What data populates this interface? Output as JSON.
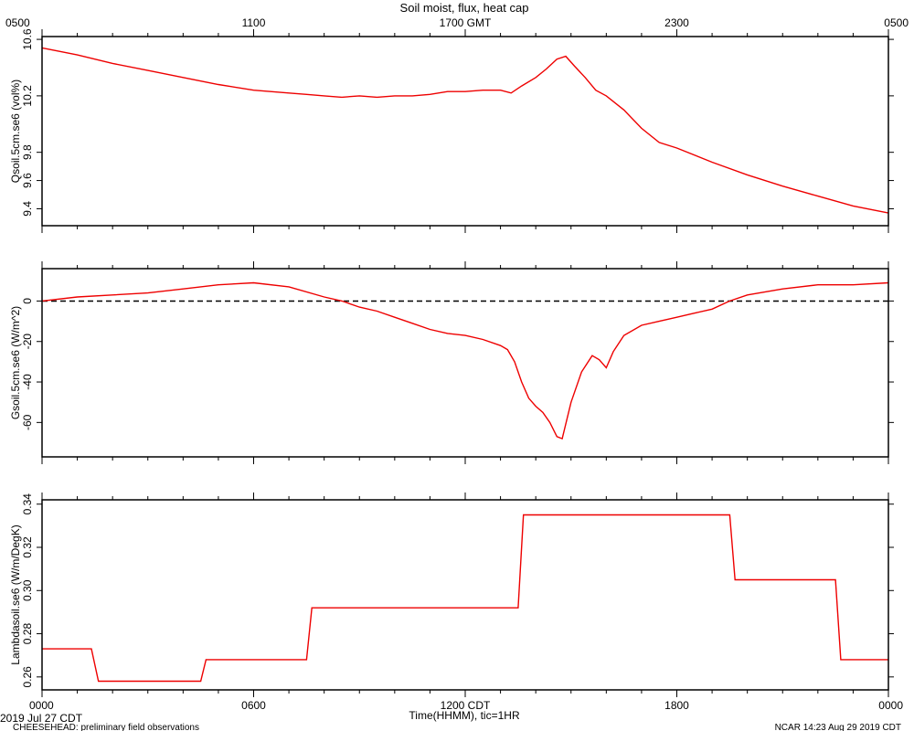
{
  "figure": {
    "title": "Soil moist, flux, heat cap",
    "top_ticks": [
      "0500",
      "1100",
      "1700 GMT",
      "2300",
      "0500"
    ],
    "bottom_ticks": [
      "0000",
      "0600",
      "1200 CDT",
      "1800",
      "0000"
    ],
    "xlabel": "Time(HHMM), tic=1HR",
    "date_label": "2019 Jul 27 CDT",
    "footer_left": "CHEESEHEAD: preliminary field observations",
    "footer_right": "NCAR 14:23 Aug 29 2019 CDT",
    "line_color": "#ee0000"
  },
  "chart_data": [
    {
      "type": "line",
      "ylabel": "Qsoil.5cm.se6 (vol%)",
      "ylim": [
        9.28,
        10.62
      ],
      "y_ticks": [
        9.4,
        9.6,
        9.8,
        10.2,
        10.6
      ],
      "y_tick_labels": [
        "9.4",
        "9.6",
        "9.8",
        "10.2",
        "10.6"
      ],
      "x_hours": [
        0,
        1,
        2,
        3,
        4,
        5,
        6,
        7,
        7.5,
        8,
        8.5,
        9,
        9.5,
        10,
        10.5,
        11,
        11.5,
        12,
        12.5,
        13,
        13.3,
        13.6,
        14,
        14.3,
        14.6,
        14.85,
        15.1,
        15.4,
        15.7,
        16,
        16.5,
        17,
        17.5,
        18,
        19,
        20,
        21,
        22,
        23,
        24
      ],
      "values": [
        10.54,
        10.49,
        10.43,
        10.38,
        10.33,
        10.28,
        10.24,
        10.22,
        10.21,
        10.2,
        10.19,
        10.2,
        10.19,
        10.2,
        10.2,
        10.21,
        10.23,
        10.23,
        10.24,
        10.24,
        10.22,
        10.27,
        10.33,
        10.39,
        10.46,
        10.48,
        10.41,
        10.33,
        10.24,
        10.2,
        10.1,
        9.97,
        9.87,
        9.83,
        9.73,
        9.64,
        9.56,
        9.49,
        9.42,
        9.37
      ]
    },
    {
      "type": "line",
      "ylabel": "Gsoil.5cm.se6 (W/m^2)",
      "ylim": [
        -77,
        16
      ],
      "y_ticks": [
        -60,
        -40,
        -20,
        0
      ],
      "y_tick_labels": [
        "-60",
        "-40",
        "-20",
        "0"
      ],
      "zero_line": true,
      "x_hours": [
        0,
        1,
        2,
        3,
        4,
        5,
        6,
        7,
        8,
        8.5,
        9,
        9.5,
        10,
        10.5,
        11,
        11.5,
        12,
        12.5,
        13,
        13.2,
        13.4,
        13.6,
        13.8,
        14,
        14.2,
        14.4,
        14.6,
        14.75,
        15,
        15.3,
        15.6,
        15.8,
        16,
        16.2,
        16.5,
        17,
        17.5,
        18,
        18.5,
        19,
        19.5,
        20,
        21,
        22,
        23,
        24
      ],
      "values": [
        0,
        2,
        3,
        4,
        6,
        8,
        9,
        7,
        2,
        0,
        -3,
        -5,
        -8,
        -11,
        -14,
        -16,
        -17,
        -19,
        -22,
        -24,
        -30,
        -40,
        -48,
        -52,
        -55,
        -60,
        -67,
        -68,
        -50,
        -35,
        -27,
        -29,
        -33,
        -25,
        -17,
        -12,
        -10,
        -8,
        -6,
        -4,
        0,
        3,
        6,
        8,
        8,
        9
      ]
    },
    {
      "type": "line",
      "ylabel": "Lambdasoil.se6 (W/m/DegK)",
      "ylim": [
        0.254,
        0.342
      ],
      "y_ticks": [
        0.26,
        0.28,
        0.3,
        0.32,
        0.34
      ],
      "y_tick_labels": [
        "0.26",
        "0.28",
        "0.30",
        "0.32",
        "0.34"
      ],
      "x_hours": [
        0,
        1.4,
        1.6,
        4.5,
        4.65,
        7.5,
        7.65,
        13.5,
        13.65,
        19.5,
        19.65,
        22.5,
        22.65,
        24
      ],
      "values": [
        0.273,
        0.273,
        0.258,
        0.258,
        0.268,
        0.268,
        0.292,
        0.292,
        0.335,
        0.335,
        0.305,
        0.305,
        0.268,
        0.268
      ]
    }
  ]
}
